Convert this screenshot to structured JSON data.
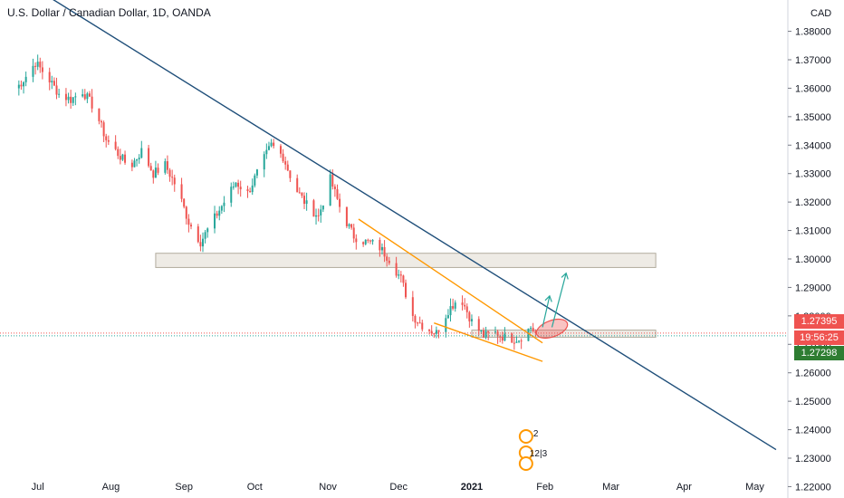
{
  "header": {
    "title": "U.S. Dollar / Canadian Dollar, 1D, OANDA",
    "currency": "CAD"
  },
  "price_labels": {
    "current": "1.27395",
    "countdown": "19:56:25",
    "line": "1.27298"
  },
  "event_markers": [
    "2",
    "12",
    "3"
  ],
  "colors": {
    "up": "#26a69a",
    "down": "#ef5350",
    "trendline": "#1e4e79",
    "wedge": "#ff9800",
    "zone": "#e8e4dc",
    "projection": "#26a69a",
    "target": "#ef5350"
  },
  "chart_data": {
    "type": "candlestick",
    "title": "U.S. Dollar / Canadian Dollar, 1D, OANDA",
    "y_unit": "CAD",
    "ylim": [
      1.216,
      1.391
    ],
    "y_ticks": [
      "1.22000",
      "1.23000",
      "1.24000",
      "1.25000",
      "1.26000",
      "1.27000",
      "1.28000",
      "1.29000",
      "1.30000",
      "1.31000",
      "1.32000",
      "1.33000",
      "1.34000",
      "1.35000",
      "1.36000",
      "1.37000",
      "1.38000"
    ],
    "x_ticks": [
      "Jul",
      "Aug",
      "Sep",
      "Oct",
      "Nov",
      "Dec",
      "2021",
      "Feb",
      "Mar",
      "Apr",
      "May"
    ],
    "closes": [
      [
        "2020-06-20",
        1.358
      ],
      [
        "2020-06-25",
        1.363
      ],
      [
        "2020-06-30",
        1.369
      ],
      [
        "2020-07-05",
        1.364
      ],
      [
        "2020-07-10",
        1.358
      ],
      [
        "2020-07-15",
        1.356
      ],
      [
        "2020-07-20",
        1.359
      ],
      [
        "2020-07-25",
        1.353
      ],
      [
        "2020-07-30",
        1.342
      ],
      [
        "2020-08-04",
        1.337
      ],
      [
        "2020-08-09",
        1.332
      ],
      [
        "2020-08-14",
        1.338
      ],
      [
        "2020-08-19",
        1.33
      ],
      [
        "2020-08-24",
        1.333
      ],
      [
        "2020-08-29",
        1.325
      ],
      [
        "2020-09-03",
        1.313
      ],
      [
        "2020-09-08",
        1.306
      ],
      [
        "2020-09-13",
        1.313
      ],
      [
        "2020-09-18",
        1.32
      ],
      [
        "2020-09-23",
        1.327
      ],
      [
        "2020-09-28",
        1.323
      ],
      [
        "2020-10-03",
        1.332
      ],
      [
        "2020-10-08",
        1.34
      ],
      [
        "2020-10-13",
        1.336
      ],
      [
        "2020-10-18",
        1.325
      ],
      [
        "2020-10-23",
        1.319
      ],
      [
        "2020-10-28",
        1.315
      ],
      [
        "2020-11-02",
        1.328
      ],
      [
        "2020-11-07",
        1.316
      ],
      [
        "2020-11-12",
        1.308
      ],
      [
        "2020-11-17",
        1.306
      ],
      [
        "2020-11-22",
        1.305
      ],
      [
        "2020-11-27",
        1.3
      ],
      [
        "2020-12-02",
        1.293
      ],
      [
        "2020-12-07",
        1.28
      ],
      [
        "2020-12-12",
        1.276
      ],
      [
        "2020-12-17",
        1.274
      ],
      [
        "2020-12-22",
        1.282
      ],
      [
        "2020-12-27",
        1.287
      ],
      [
        "2021-01-01",
        1.278
      ],
      [
        "2021-01-06",
        1.273
      ],
      [
        "2021-01-11",
        1.274
      ],
      [
        "2021-01-16",
        1.272
      ],
      [
        "2021-01-21",
        1.272
      ],
      [
        "2021-01-26",
        1.276
      ],
      [
        "2021-01-28",
        1.274
      ]
    ],
    "zones": [
      {
        "from": "2020-08-20",
        "to": "2021-03-20",
        "low": 1.297,
        "high": 1.302
      },
      {
        "from": "2021-01-01",
        "to": "2021-03-20",
        "low": 1.2725,
        "high": 1.275
      }
    ],
    "trendline": {
      "from": [
        "2020-06-01",
        1.41
      ],
      "to": [
        "2021-05-10",
        1.233
      ]
    },
    "wedge": {
      "upper": {
        "from": [
          "2020-11-14",
          1.314
        ],
        "to": [
          "2021-01-31",
          1.2705
        ]
      },
      "lower": {
        "from": [
          "2020-12-16",
          1.2775
        ],
        "to": [
          "2021-01-31",
          1.264
        ]
      }
    },
    "projections": [
      {
        "from": [
          "2021-01-31",
          1.276
        ],
        "to": [
          "2021-02-03",
          1.287
        ]
      },
      {
        "from": [
          "2021-02-04",
          1.276
        ],
        "to": [
          "2021-02-10",
          1.295
        ]
      }
    ],
    "target_ellipse": {
      "center": [
        "2021-02-04",
        1.2755
      ]
    },
    "grid": false
  }
}
